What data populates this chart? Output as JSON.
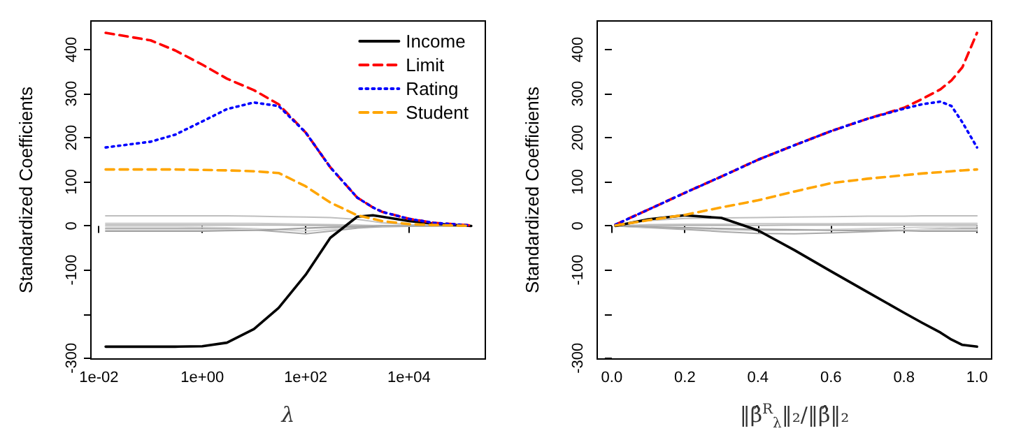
{
  "chart_data": [
    {
      "type": "line",
      "xlabel": "λ",
      "ylabel": "Standardized Coefficients",
      "log": "x",
      "legend": "top right",
      "grid": false,
      "x": [
        0.0135,
        0.1,
        0.3,
        1,
        3,
        10,
        30,
        100,
        300,
        1000,
        2000,
        3000,
        10000,
        30000,
        160000
      ],
      "xlim": [
        0.007,
        300000
      ],
      "xticks": [
        {
          "value": 0.01,
          "label": "1e-02"
        },
        {
          "value": 1,
          "label": "1e+00"
        },
        {
          "value": 100,
          "label": "1e+02"
        },
        {
          "value": 10000,
          "label": "1e+04"
        }
      ],
      "ylim": [
        -302,
        465
      ],
      "yticks": [
        -300,
        {
          "value": -200,
          "label": null
        },
        -100,
        0,
        100,
        200,
        300,
        400
      ],
      "series": [
        {
          "color": "#bebebe",
          "line_style": "solid",
          "values": [
            23,
            23,
            23,
            23,
            23,
            22,
            21,
            20,
            19,
            15,
            10,
            7,
            3,
            1,
            0
          ]
        },
        {
          "color": "#c8c8c8",
          "line_style": "solid",
          "values": [
            6,
            6,
            6,
            6,
            6,
            6,
            5,
            4,
            3,
            2,
            1,
            1,
            0,
            0,
            0
          ]
        },
        {
          "color": "#b4b4b4",
          "line_style": "solid",
          "values": [
            2,
            2,
            2,
            2,
            2,
            2,
            2,
            1,
            1,
            1,
            0,
            0,
            0,
            0,
            0
          ]
        },
        {
          "color": "#d2d2d2",
          "line_style": "solid",
          "values": [
            -2,
            -2,
            -2,
            -3,
            -4,
            -6,
            -9,
            -12,
            -8,
            -4,
            -2,
            -1,
            0,
            0,
            0
          ]
        },
        {
          "color": "#aaaaaa",
          "line_style": "solid",
          "values": [
            -6,
            -6,
            -6,
            -6,
            -7,
            -9,
            -13,
            -18,
            -12,
            -5,
            -3,
            -2,
            -1,
            0,
            0
          ]
        },
        {
          "color": "#dcdcdc",
          "line_style": "solid",
          "values": [
            -9,
            -9,
            -9,
            -9,
            -9,
            -9,
            -8,
            -6,
            -4,
            -2,
            -1,
            -1,
            0,
            0,
            0
          ]
        },
        {
          "color": "#a0a0a0",
          "line_style": "solid",
          "values": [
            -12,
            -12,
            -12,
            -12,
            -11,
            -10,
            -8,
            -5,
            -3,
            -2,
            -1,
            0,
            0,
            0,
            0
          ]
        },
        {
          "name": "Income",
          "color": "#000000",
          "line_style": "solid",
          "values": [
            -274,
            -274,
            -274,
            -273,
            -265,
            -234,
            -186,
            -111,
            -27,
            21,
            24,
            21,
            11,
            5,
            0
          ]
        },
        {
          "name": "Limit",
          "color": "#ff0000",
          "line_style": "dashed",
          "values": [
            438,
            421,
            398,
            366,
            334,
            308,
            276,
            212,
            133,
            64,
            42,
            32,
            16,
            7,
            1
          ]
        },
        {
          "name": "Rating",
          "color": "#0000ff",
          "line_style": "dotted",
          "values": [
            178,
            191,
            207,
            237,
            265,
            280,
            272,
            212,
            133,
            64,
            42,
            32,
            16,
            7,
            1
          ]
        },
        {
          "name": "Student",
          "color": "#ffa500",
          "line_style": "dashed",
          "values": [
            128,
            128,
            128,
            127,
            126,
            124,
            120,
            90,
            53,
            24,
            16,
            11,
            4,
            2,
            0
          ]
        }
      ]
    },
    {
      "type": "line",
      "xlabel": "‖β̂$^{R}$$_{λ}$‖₂/‖β̂‖₂",
      "ylabel": "Standardized Coefficients",
      "grid": false,
      "x": [
        0.01,
        0.1,
        0.2,
        0.3,
        0.4,
        0.5,
        0.6,
        0.7,
        0.8,
        0.85,
        0.9,
        0.93,
        0.96,
        1.0
      ],
      "xlim": [
        -0.04,
        1.04
      ],
      "xticks": [
        {
          "value": 0,
          "label": "0.0"
        },
        0.2,
        0.4,
        0.6,
        0.8,
        {
          "value": 1,
          "label": "1.0"
        }
      ],
      "ylim": [
        -302,
        465
      ],
      "yticks": [
        -300,
        {
          "value": -200,
          "label": null
        },
        -100,
        0,
        100,
        200,
        300,
        400
      ],
      "series": [
        {
          "color": "#bebebe",
          "line_style": "solid",
          "values": [
            0,
            12,
            17,
            18,
            19,
            20,
            21,
            22,
            22,
            23,
            23,
            23,
            23,
            23
          ]
        },
        {
          "color": "#c8c8c8",
          "line_style": "solid",
          "values": [
            0,
            3,
            4,
            4,
            5,
            5,
            5,
            6,
            6,
            6,
            6,
            6,
            6,
            6
          ]
        },
        {
          "color": "#b4b4b4",
          "line_style": "solid",
          "values": [
            0,
            1,
            1,
            1,
            1,
            2,
            2,
            2,
            2,
            2,
            2,
            2,
            2,
            2
          ]
        },
        {
          "color": "#d2d2d2",
          "line_style": "solid",
          "values": [
            0,
            -3,
            -6,
            -9,
            -11,
            -10,
            -8,
            -6,
            -4,
            -3,
            -3,
            -2,
            -2,
            -2
          ]
        },
        {
          "color": "#aaaaaa",
          "line_style": "solid",
          "values": [
            0,
            -4,
            -8,
            -13,
            -17,
            -18,
            -16,
            -13,
            -10,
            -8,
            -7,
            -7,
            -6,
            -6
          ]
        },
        {
          "color": "#dcdcdc",
          "line_style": "solid",
          "values": [
            0,
            -3,
            -4,
            -6,
            -7,
            -8,
            -9,
            -9,
            -9,
            -9,
            -9,
            -9,
            -9,
            -9
          ]
        },
        {
          "color": "#a0a0a0",
          "line_style": "solid",
          "values": [
            0,
            -2,
            -4,
            -6,
            -8,
            -9,
            -10,
            -11,
            -11,
            -12,
            -12,
            -12,
            -12,
            -12
          ]
        },
        {
          "color": "#000000",
          "line_style": "solid",
          "values": [
            0,
            15,
            24,
            18,
            -10,
            -55,
            -103,
            -150,
            -197,
            -220,
            -242,
            -258,
            -270,
            -274
          ]
        },
        {
          "color": "#ff0000",
          "line_style": "dashed",
          "values": [
            3,
            37,
            75,
            112,
            150,
            183,
            215,
            243,
            268,
            288,
            310,
            330,
            360,
            438
          ]
        },
        {
          "color": "#0000ff",
          "line_style": "dotted",
          "values": [
            3,
            37,
            75,
            112,
            150,
            183,
            215,
            243,
            266,
            276,
            282,
            272,
            235,
            178
          ]
        },
        {
          "color": "#ffa500",
          "line_style": "dashed",
          "values": [
            1,
            13,
            25,
            42,
            58,
            78,
            97,
            107,
            115,
            119,
            122,
            124,
            126,
            128
          ]
        }
      ]
    }
  ]
}
